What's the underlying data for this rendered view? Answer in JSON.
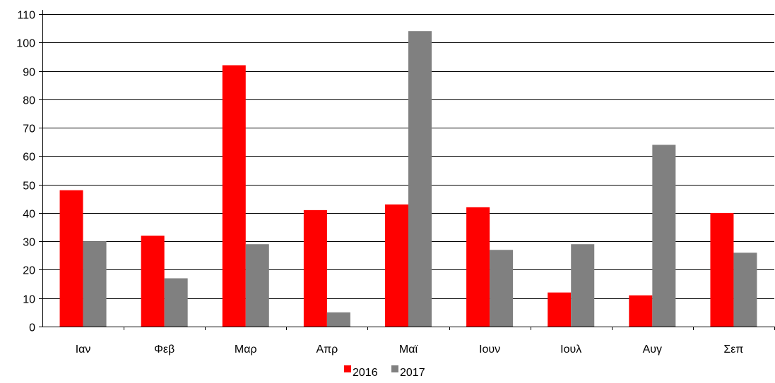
{
  "chart_data": {
    "type": "bar",
    "title": "",
    "xlabel": "",
    "ylabel": "",
    "categories": [
      "Ιαν",
      "Φεβ",
      "Μαρ",
      "Απρ",
      "Μαϊ",
      "Ιουν",
      "Ιουλ",
      "Αυγ",
      "Σεπ"
    ],
    "series": [
      {
        "name": "2016",
        "color": "#ff0000",
        "values": [
          48,
          32,
          92,
          41,
          43,
          42,
          12,
          11,
          40
        ]
      },
      {
        "name": "2017",
        "color": "#808080",
        "values": [
          30,
          17,
          29,
          5,
          104,
          27,
          29,
          64,
          26
        ]
      }
    ],
    "ylim": [
      0,
      110
    ],
    "yticks": [
      "0",
      "10",
      "20",
      "30",
      "40",
      "50",
      "60",
      "70",
      "80",
      "90",
      "100",
      "110"
    ],
    "grid": true,
    "legend_position": "bottom-center"
  }
}
